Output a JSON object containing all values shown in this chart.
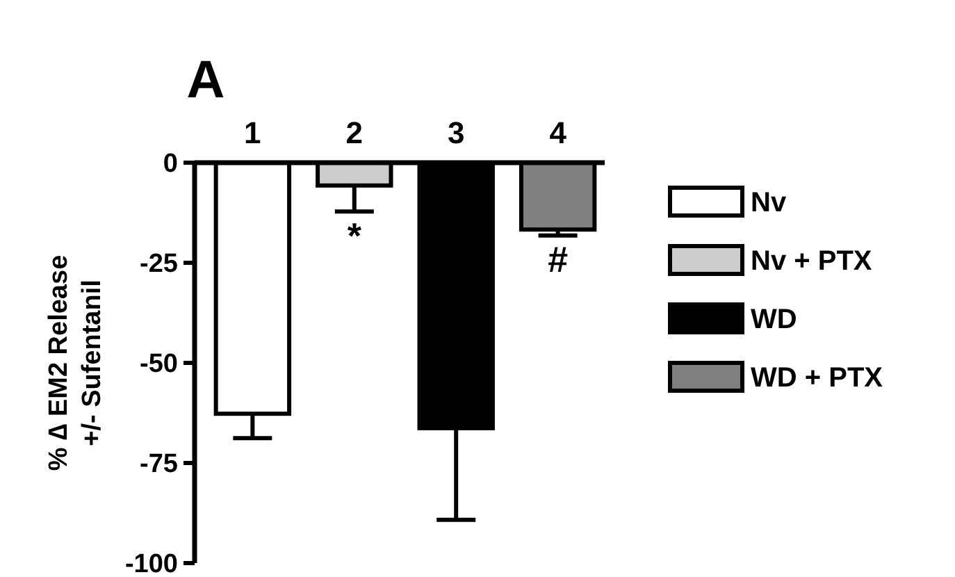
{
  "chart_data": {
    "type": "bar",
    "title": "A",
    "ylabel": "% ∆ EM2 Release\n+/- Sufentanil",
    "categories": [
      "1",
      "2",
      "3",
      "4"
    ],
    "series": [
      {
        "name": "Nv",
        "color": "#ffffff",
        "values": [
          -62.7,
          null,
          null,
          null
        ],
        "errors": [
          [
            -68.8,
            -62.7
          ],
          null,
          null,
          null
        ]
      },
      {
        "name": "Nv + PTX",
        "color": "#cccccc",
        "values": [
          null,
          -5.7,
          null,
          null
        ],
        "errors": [
          null,
          [
            -12.2,
            -5.7
          ],
          null,
          null
        ]
      },
      {
        "name": "WD",
        "color": "#000000",
        "values": [
          null,
          null,
          -66.3,
          null
        ],
        "errors": [
          null,
          null,
          [
            -89.2,
            -66.3
          ],
          null
        ]
      },
      {
        "name": "WD + PTX",
        "color": "#808080",
        "values": [
          null,
          null,
          null,
          -16.7
        ],
        "errors": [
          null,
          null,
          null,
          [
            -18.2,
            -16.7
          ]
        ]
      }
    ],
    "ylim": [
      -100,
      0
    ],
    "yticks": [
      0,
      -25,
      -50,
      -75,
      -100
    ],
    "grid": false,
    "legend": "right",
    "annotations": [
      {
        "text": "*",
        "x": "2",
        "y": -12.2
      },
      {
        "text": "#",
        "x": "4",
        "y": -18.2
      }
    ]
  }
}
